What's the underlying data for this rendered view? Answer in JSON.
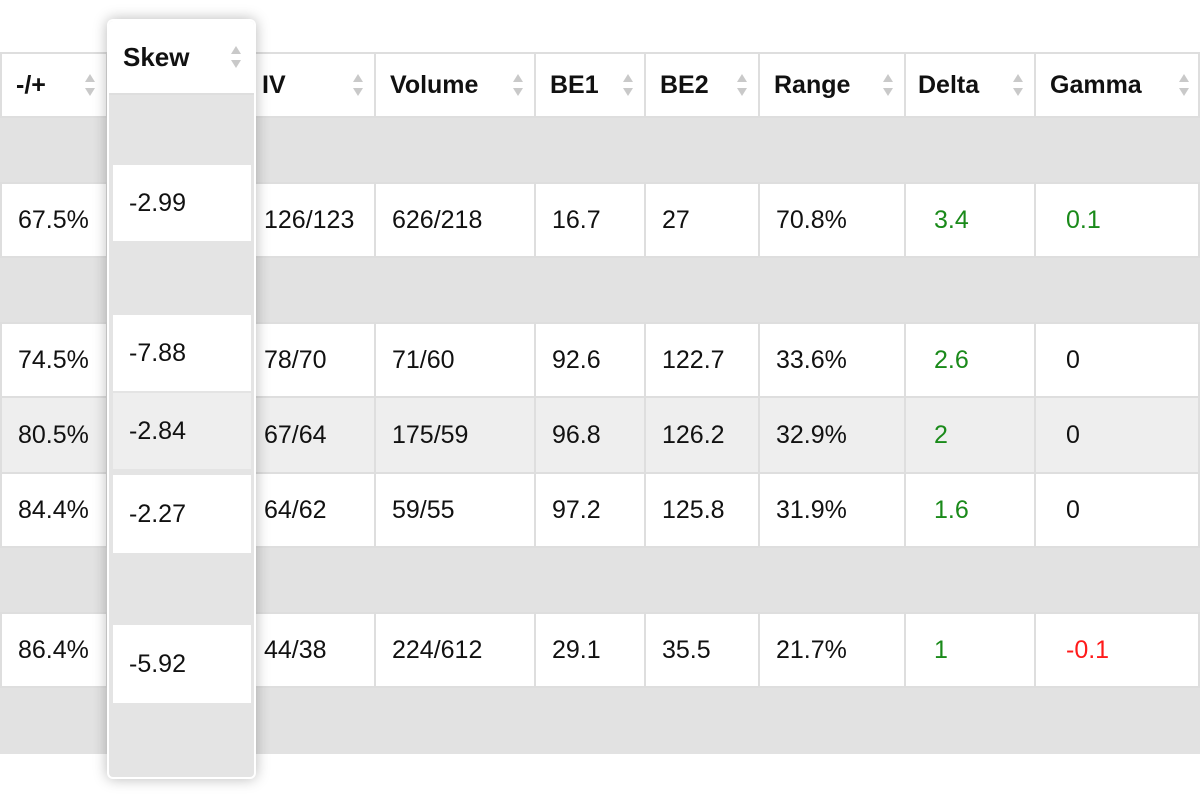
{
  "columns": {
    "pm": "-/+",
    "skew": "Skew",
    "iv": "IV",
    "volume": "Volume",
    "be1": "BE1",
    "be2": "BE2",
    "range": "Range",
    "delta": "Delta",
    "gamma": "Gamma"
  },
  "rows": [
    {
      "pm": "67.5%",
      "skew": "-2.99",
      "iv": "126/123",
      "volume": "626/218",
      "be1": "16.7",
      "be2": "27",
      "range": "70.8%",
      "delta": "3.4",
      "gamma": "0.1"
    },
    {
      "pm": "74.5%",
      "skew": "-7.88",
      "iv": "78/70",
      "volume": "71/60",
      "be1": "92.6",
      "be2": "122.7",
      "range": "33.6%",
      "delta": "2.6",
      "gamma": "0"
    },
    {
      "pm": "80.5%",
      "skew": "-2.84",
      "iv": "67/64",
      "volume": "175/59",
      "be1": "96.8",
      "be2": "126.2",
      "range": "32.9%",
      "delta": "2",
      "gamma": "0"
    },
    {
      "pm": "84.4%",
      "skew": "-2.27",
      "iv": "64/62",
      "volume": "59/55",
      "be1": "97.2",
      "be2": "125.8",
      "range": "31.9%",
      "delta": "1.6",
      "gamma": "0"
    },
    {
      "pm": "86.4%",
      "skew": "-5.92",
      "iv": "44/38",
      "volume": "224/612",
      "be1": "29.1",
      "be2": "35.5",
      "range": "21.7%",
      "delta": "1",
      "gamma": "-0.1"
    }
  ],
  "colors": {
    "positive": "#1a8a1a",
    "negative": "#ff1a1a",
    "neutral": "#111111",
    "spacer": "#e2e2e2",
    "border": "#dedede"
  }
}
